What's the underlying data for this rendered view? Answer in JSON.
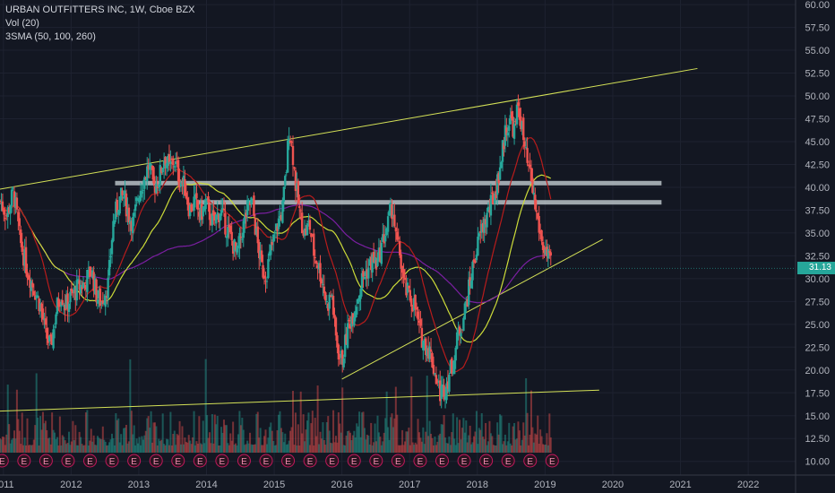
{
  "legend": {
    "title": "URBAN OUTFITTERS INC, 1W, Cboe BZX",
    "vol": "Vol (20)",
    "sma": "3SMA (50, 100, 260)"
  },
  "last_price_label": "31.13",
  "colors": {
    "background": "#131722",
    "up": "#26a69a",
    "down": "#ef5350",
    "grid": "#1e2230",
    "trendline": "#d4e157",
    "sma50": "#b71c1c",
    "sma100": "#cddc39",
    "sma260": "#7b1fa2",
    "zone": "#cfd8dc",
    "earnings": "#c2185b"
  },
  "chart_data": {
    "type": "candlestick",
    "title": "URBAN OUTFITTERS INC, 1W, Cboe BZX",
    "x_ticks": [
      "2011",
      "2012",
      "2013",
      "2014",
      "2015",
      "2016",
      "2017",
      "2018",
      "2019",
      "2020",
      "2021",
      "2022"
    ],
    "y_ticks": [
      "60.00",
      "57.50",
      "55.00",
      "52.50",
      "50.00",
      "47.50",
      "45.00",
      "42.50",
      "40.00",
      "37.50",
      "35.00",
      "32.50",
      "30.00",
      "27.50",
      "25.00",
      "22.50",
      "20.00",
      "17.50",
      "15.00",
      "12.50",
      "10.00"
    ],
    "ylim": [
      8.5,
      60.5
    ],
    "xlim": [
      2010.95,
      2022.7
    ],
    "last_price": 31.13,
    "price_path": [
      [
        2010.95,
        38.5
      ],
      [
        2011.05,
        37
      ],
      [
        2011.15,
        39.5
      ],
      [
        2011.25,
        34
      ],
      [
        2011.35,
        31
      ],
      [
        2011.45,
        29
      ],
      [
        2011.55,
        27
      ],
      [
        2011.62,
        24
      ],
      [
        2011.7,
        22.5
      ],
      [
        2011.78,
        26.5
      ],
      [
        2011.85,
        28.5
      ],
      [
        2011.92,
        27
      ],
      [
        2012.0,
        28
      ],
      [
        2012.1,
        29
      ],
      [
        2012.2,
        29.5
      ],
      [
        2012.3,
        31
      ],
      [
        2012.38,
        28
      ],
      [
        2012.45,
        27.5
      ],
      [
        2012.55,
        29.5
      ],
      [
        2012.62,
        36
      ],
      [
        2012.7,
        38.5
      ],
      [
        2012.78,
        39
      ],
      [
        2012.85,
        37
      ],
      [
        2012.92,
        36
      ],
      [
        2013.0,
        39.5
      ],
      [
        2013.08,
        41
      ],
      [
        2013.15,
        42.5
      ],
      [
        2013.22,
        40
      ],
      [
        2013.3,
        41
      ],
      [
        2013.38,
        43.5
      ],
      [
        2013.45,
        42
      ],
      [
        2013.52,
        43
      ],
      [
        2013.6,
        41
      ],
      [
        2013.68,
        40
      ],
      [
        2013.75,
        37.5
      ],
      [
        2013.82,
        38.5
      ],
      [
        2013.9,
        37
      ],
      [
        2014.0,
        38
      ],
      [
        2014.1,
        36
      ],
      [
        2014.2,
        37.5
      ],
      [
        2014.3,
        35.5
      ],
      [
        2014.38,
        34
      ],
      [
        2014.45,
        32.5
      ],
      [
        2014.52,
        35
      ],
      [
        2014.6,
        37.5
      ],
      [
        2014.67,
        38.5
      ],
      [
        2014.75,
        34
      ],
      [
        2014.82,
        31
      ],
      [
        2014.88,
        30.5
      ],
      [
        2014.95,
        33
      ],
      [
        2015.05,
        36
      ],
      [
        2015.12,
        37.5
      ],
      [
        2015.18,
        42
      ],
      [
        2015.22,
        46.5
      ],
      [
        2015.27,
        44
      ],
      [
        2015.32,
        40
      ],
      [
        2015.38,
        37
      ],
      [
        2015.45,
        35
      ],
      [
        2015.52,
        36
      ],
      [
        2015.58,
        33
      ],
      [
        2015.65,
        31.5
      ],
      [
        2015.72,
        29.5
      ],
      [
        2015.78,
        27
      ],
      [
        2015.85,
        28.5
      ],
      [
        2015.9,
        24
      ],
      [
        2015.95,
        22
      ],
      [
        2016.0,
        21
      ],
      [
        2016.05,
        23
      ],
      [
        2016.1,
        25
      ],
      [
        2016.2,
        27
      ],
      [
        2016.3,
        30
      ],
      [
        2016.38,
        31
      ],
      [
        2016.45,
        32
      ],
      [
        2016.52,
        31.5
      ],
      [
        2016.6,
        34
      ],
      [
        2016.68,
        36
      ],
      [
        2016.75,
        38
      ],
      [
        2016.8,
        34
      ],
      [
        2016.85,
        33
      ],
      [
        2016.92,
        29
      ],
      [
        2017.0,
        28
      ],
      [
        2017.08,
        27
      ],
      [
        2017.15,
        24
      ],
      [
        2017.22,
        23
      ],
      [
        2017.3,
        22
      ],
      [
        2017.38,
        19.5
      ],
      [
        2017.45,
        17.5
      ],
      [
        2017.52,
        18
      ],
      [
        2017.58,
        19.5
      ],
      [
        2017.65,
        21
      ],
      [
        2017.72,
        24
      ],
      [
        2017.8,
        26
      ],
      [
        2017.88,
        29
      ],
      [
        2017.95,
        32
      ],
      [
        2018.05,
        35
      ],
      [
        2018.12,
        36.5
      ],
      [
        2018.2,
        38
      ],
      [
        2018.28,
        40
      ],
      [
        2018.35,
        43
      ],
      [
        2018.42,
        46.5
      ],
      [
        2018.5,
        47.5
      ],
      [
        2018.55,
        46
      ],
      [
        2018.6,
        49
      ],
      [
        2018.65,
        47
      ],
      [
        2018.7,
        44
      ],
      [
        2018.75,
        42
      ],
      [
        2018.8,
        40.5
      ],
      [
        2018.85,
        38
      ],
      [
        2018.9,
        36
      ],
      [
        2018.95,
        34
      ],
      [
        2019.0,
        33
      ],
      [
        2019.05,
        32
      ],
      [
        2019.1,
        31.13
      ]
    ],
    "earnings_marker_label": "E",
    "earnings_marker_count": 26
  }
}
